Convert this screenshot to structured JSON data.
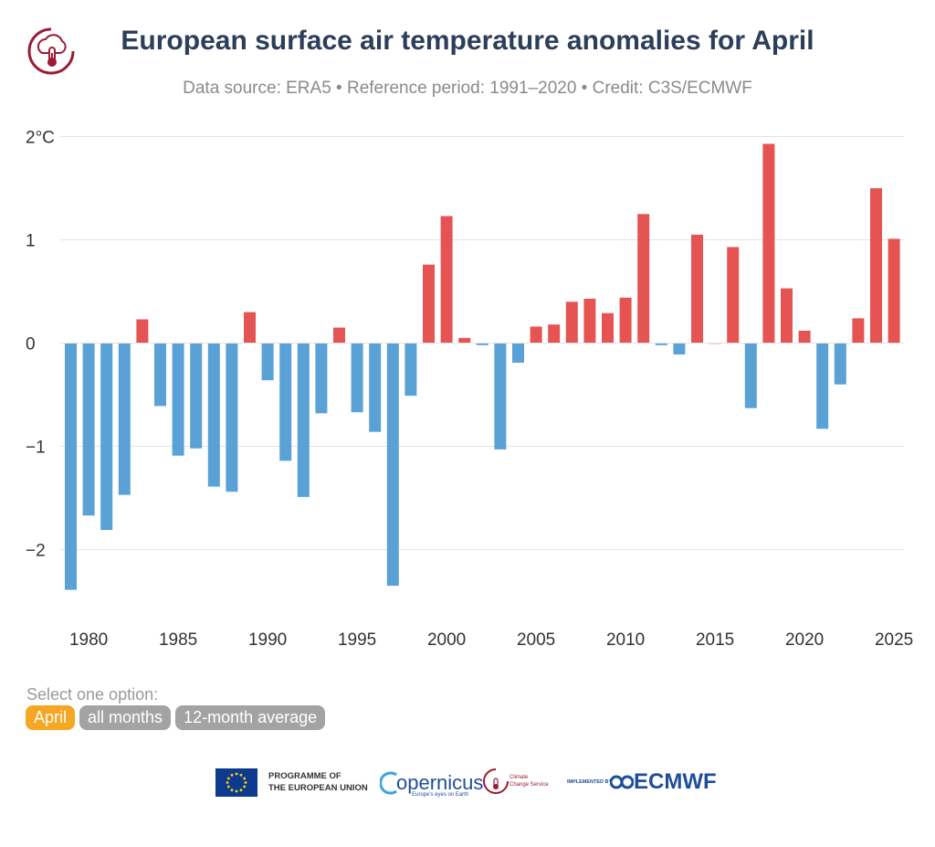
{
  "header": {
    "title": "European surface air temperature anomalies for April",
    "subtitle": "Data source: ERA5 • Reference period: 1991–2020 • Credit: C3S/ECMWF"
  },
  "controls": {
    "select_label": "Select one option:",
    "options": [
      "April",
      "all months",
      "12-month average"
    ],
    "selected": "April"
  },
  "footer": {
    "eu_text_1": "PROGRAMME OF",
    "eu_text_2": "THE EUROPEAN UNION",
    "copernicus": "opernicus",
    "copernicus_tag": "Europe's eyes on Earth",
    "c3s_text_1": "Climate",
    "c3s_text_2": "Change Service",
    "implemented_by": "IMPLEMENTED BY",
    "ecmwf": "ECMWF"
  },
  "colors": {
    "positive": "#e55353",
    "negative": "#5aa2d6",
    "title": "#2c3e5a",
    "active_option": "#f5a623",
    "inactive_option": "#a3a3a3"
  },
  "chart_data": {
    "type": "bar",
    "title": "European surface air temperature anomalies for April",
    "ylabel": "°C",
    "ylim": [
      -2.5,
      2
    ],
    "yticks": [
      -2,
      -1,
      0,
      1,
      2
    ],
    "ytick_labels": [
      "−2",
      "−1",
      "0",
      "1",
      "2°C"
    ],
    "xticks": [
      1980,
      1985,
      1990,
      1995,
      2000,
      2005,
      2010,
      2015,
      2020,
      2025
    ],
    "years": [
      1979,
      1980,
      1981,
      1982,
      1983,
      1984,
      1985,
      1986,
      1987,
      1988,
      1989,
      1990,
      1991,
      1992,
      1993,
      1994,
      1995,
      1996,
      1997,
      1998,
      1999,
      2000,
      2001,
      2002,
      2003,
      2004,
      2005,
      2006,
      2007,
      2008,
      2009,
      2010,
      2011,
      2012,
      2013,
      2014,
      2015,
      2016,
      2017,
      2018,
      2019,
      2020,
      2021,
      2022,
      2023,
      2024,
      2025
    ],
    "values": [
      -2.39,
      -1.67,
      -1.81,
      -1.47,
      0.23,
      -0.61,
      -1.09,
      -1.02,
      -1.39,
      -1.44,
      0.3,
      -0.36,
      -1.14,
      -1.49,
      -0.68,
      0.15,
      -0.67,
      -0.86,
      -2.35,
      -0.51,
      0.76,
      1.23,
      0.05,
      -0.02,
      -1.03,
      -0.19,
      0.16,
      0.18,
      0.4,
      0.43,
      0.29,
      0.44,
      1.25,
      -0.02,
      -0.11,
      1.05,
      0.0,
      0.93,
      -0.63,
      1.93,
      0.53,
      0.12,
      -0.83,
      -0.4,
      0.24,
      1.5,
      1.01
    ]
  }
}
